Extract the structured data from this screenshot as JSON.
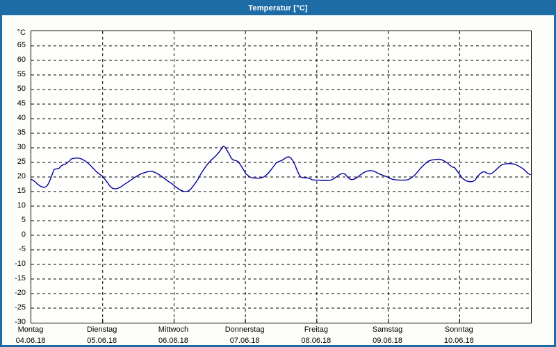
{
  "window": {
    "title": "Temperatur [°C]"
  },
  "colors": {
    "frame_blue": "#1d6ca5",
    "title_text": "#ffffff",
    "plot_border": "#000000",
    "gridline": "#000000",
    "line_blue": "#0000a0",
    "client_bg": "#fdfdfa"
  },
  "chart_data": {
    "type": "line",
    "title": "Temperatur [°C]",
    "y_unit_label": "°C",
    "y_ticks": [
      65,
      60,
      55,
      50,
      45,
      40,
      35,
      30,
      25,
      20,
      15,
      10,
      5,
      0,
      -5,
      -10,
      -15,
      -20,
      -25,
      -30
    ],
    "y_plot_range": [
      -30,
      70
    ],
    "x_days": [
      {
        "weekday": "Montag",
        "date": "04.06.18"
      },
      {
        "weekday": "Dienstag",
        "date": "05.06.18"
      },
      {
        "weekday": "Mittwoch",
        "date": "06.06.18"
      },
      {
        "weekday": "Donnerstag",
        "date": "07.06.18"
      },
      {
        "weekday": "Freitag",
        "date": "08.06.18"
      },
      {
        "weekday": "Samstag",
        "date": "09.06.18"
      },
      {
        "weekday": "Sonntag",
        "date": "10.06.18"
      }
    ],
    "x_range_days": [
      0,
      7
    ],
    "grid": {
      "horizontal": "dashed every 5 °C",
      "vertical": "dashed at each day boundary"
    },
    "legend": "none",
    "series": [
      {
        "name": "Temperatur",
        "color": "#0000a0",
        "x_unit": "days from Montag 04.06.18",
        "points": [
          [
            0.0,
            19.2
          ],
          [
            0.03,
            18.8
          ],
          [
            0.06,
            18.2
          ],
          [
            0.09,
            17.5
          ],
          [
            0.13,
            16.8
          ],
          [
            0.16,
            16.5
          ],
          [
            0.18,
            16.4
          ],
          [
            0.21,
            16.7
          ],
          [
            0.24,
            17.7
          ],
          [
            0.27,
            19.3
          ],
          [
            0.3,
            21.3
          ],
          [
            0.32,
            22.6
          ],
          [
            0.36,
            22.8
          ],
          [
            0.39,
            23.0
          ],
          [
            0.42,
            23.8
          ],
          [
            0.45,
            24.2
          ],
          [
            0.48,
            24.4
          ],
          [
            0.51,
            25.0
          ],
          [
            0.54,
            25.6
          ],
          [
            0.56,
            26.2
          ],
          [
            0.6,
            26.4
          ],
          [
            0.64,
            26.5
          ],
          [
            0.68,
            26.4
          ],
          [
            0.72,
            26.0
          ],
          [
            0.76,
            25.4
          ],
          [
            0.81,
            24.4
          ],
          [
            0.86,
            23.2
          ],
          [
            0.9,
            22.1
          ],
          [
            0.95,
            21.1
          ],
          [
            1.0,
            20.2
          ],
          [
            1.06,
            18.3
          ],
          [
            1.1,
            16.9
          ],
          [
            1.14,
            16.1
          ],
          [
            1.18,
            15.9
          ],
          [
            1.21,
            16.1
          ],
          [
            1.25,
            16.5
          ],
          [
            1.29,
            17.2
          ],
          [
            1.35,
            18.2
          ],
          [
            1.41,
            19.2
          ],
          [
            1.47,
            20.2
          ],
          [
            1.53,
            21.0
          ],
          [
            1.59,
            21.5
          ],
          [
            1.63,
            21.8
          ],
          [
            1.68,
            22.0
          ],
          [
            1.72,
            21.7
          ],
          [
            1.77,
            21.1
          ],
          [
            1.82,
            20.3
          ],
          [
            1.87,
            19.4
          ],
          [
            1.92,
            18.5
          ],
          [
            1.97,
            17.7
          ],
          [
            2.0,
            17.1
          ],
          [
            2.04,
            16.3
          ],
          [
            2.08,
            15.6
          ],
          [
            2.12,
            15.2
          ],
          [
            2.16,
            15.0
          ],
          [
            2.2,
            15.2
          ],
          [
            2.24,
            16.0
          ],
          [
            2.28,
            17.3
          ],
          [
            2.33,
            19.0
          ],
          [
            2.37,
            20.8
          ],
          [
            2.41,
            22.3
          ],
          [
            2.45,
            23.8
          ],
          [
            2.49,
            25.0
          ],
          [
            2.53,
            26.0
          ],
          [
            2.57,
            26.9
          ],
          [
            2.61,
            27.9
          ],
          [
            2.65,
            29.2
          ],
          [
            2.68,
            30.2
          ],
          [
            2.69,
            30.6
          ],
          [
            2.71,
            30.3
          ],
          [
            2.74,
            29.2
          ],
          [
            2.77,
            28.0
          ],
          [
            2.8,
            26.5
          ],
          [
            2.83,
            25.8
          ],
          [
            2.87,
            25.6
          ],
          [
            2.9,
            25.2
          ],
          [
            2.93,
            24.2
          ],
          [
            2.96,
            23.0
          ],
          [
            2.99,
            21.8
          ],
          [
            3.0,
            21.2
          ],
          [
            3.04,
            20.4
          ],
          [
            3.06,
            20.0
          ],
          [
            3.1,
            19.7
          ],
          [
            3.15,
            19.6
          ],
          [
            3.2,
            19.6
          ],
          [
            3.24,
            19.8
          ],
          [
            3.28,
            20.4
          ],
          [
            3.32,
            21.3
          ],
          [
            3.36,
            22.5
          ],
          [
            3.4,
            23.8
          ],
          [
            3.43,
            24.8
          ],
          [
            3.47,
            25.3
          ],
          [
            3.51,
            25.7
          ],
          [
            3.55,
            26.3
          ],
          [
            3.58,
            26.8
          ],
          [
            3.61,
            26.9
          ],
          [
            3.64,
            26.4
          ],
          [
            3.67,
            25.3
          ],
          [
            3.7,
            23.8
          ],
          [
            3.73,
            21.9
          ],
          [
            3.76,
            20.5
          ],
          [
            3.78,
            19.9
          ],
          [
            3.82,
            19.7
          ],
          [
            3.86,
            19.7
          ],
          [
            3.9,
            19.5
          ],
          [
            3.94,
            19.0
          ],
          [
            3.98,
            18.9
          ],
          [
            4.03,
            18.9
          ],
          [
            4.08,
            18.8
          ],
          [
            4.13,
            18.8
          ],
          [
            4.17,
            18.8
          ],
          [
            4.21,
            19.0
          ],
          [
            4.25,
            19.6
          ],
          [
            4.29,
            20.3
          ],
          [
            4.33,
            21.0
          ],
          [
            4.37,
            21.2
          ],
          [
            4.4,
            20.9
          ],
          [
            4.43,
            20.0
          ],
          [
            4.46,
            19.3
          ],
          [
            4.49,
            19.1
          ],
          [
            4.53,
            19.3
          ],
          [
            4.57,
            19.9
          ],
          [
            4.61,
            20.7
          ],
          [
            4.65,
            21.4
          ],
          [
            4.7,
            22.0
          ],
          [
            4.75,
            22.2
          ],
          [
            4.8,
            22.0
          ],
          [
            4.84,
            21.5
          ],
          [
            4.89,
            20.9
          ],
          [
            4.94,
            20.4
          ],
          [
            4.98,
            20.1
          ],
          [
            5.02,
            19.6
          ],
          [
            5.06,
            19.2
          ],
          [
            5.11,
            19.0
          ],
          [
            5.17,
            18.9
          ],
          [
            5.22,
            18.9
          ],
          [
            5.27,
            19.0
          ],
          [
            5.32,
            19.6
          ],
          [
            5.37,
            20.6
          ],
          [
            5.42,
            22.0
          ],
          [
            5.47,
            23.4
          ],
          [
            5.52,
            24.6
          ],
          [
            5.56,
            25.4
          ],
          [
            5.61,
            25.8
          ],
          [
            5.66,
            26.0
          ],
          [
            5.71,
            26.1
          ],
          [
            5.75,
            25.9
          ],
          [
            5.79,
            25.4
          ],
          [
            5.83,
            24.8
          ],
          [
            5.87,
            23.9
          ],
          [
            5.9,
            23.4
          ],
          [
            5.93,
            23.2
          ],
          [
            5.96,
            22.2
          ],
          [
            6.0,
            20.9
          ],
          [
            6.03,
            19.8
          ],
          [
            6.06,
            19.2
          ],
          [
            6.1,
            18.6
          ],
          [
            6.14,
            18.4
          ],
          [
            6.18,
            18.4
          ],
          [
            6.22,
            19.0
          ],
          [
            6.25,
            20.2
          ],
          [
            6.29,
            21.2
          ],
          [
            6.33,
            21.8
          ],
          [
            6.36,
            21.7
          ],
          [
            6.39,
            21.2
          ],
          [
            6.42,
            21.0
          ],
          [
            6.45,
            21.2
          ],
          [
            6.49,
            22.0
          ],
          [
            6.53,
            22.9
          ],
          [
            6.57,
            23.8
          ],
          [
            6.6,
            24.3
          ],
          [
            6.65,
            24.5
          ],
          [
            6.7,
            24.6
          ],
          [
            6.75,
            24.5
          ],
          [
            6.8,
            24.1
          ],
          [
            6.85,
            23.4
          ],
          [
            6.89,
            22.8
          ],
          [
            6.93,
            21.9
          ],
          [
            6.96,
            21.2
          ],
          [
            6.99,
            20.8
          ]
        ]
      }
    ]
  }
}
